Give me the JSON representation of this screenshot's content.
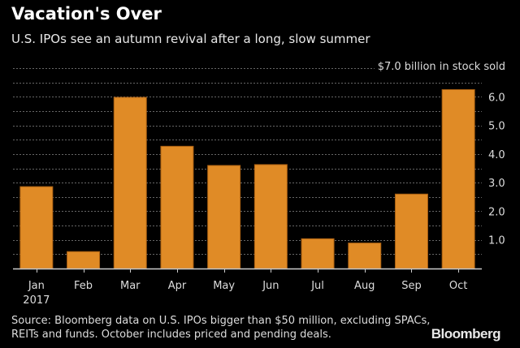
{
  "colors": {
    "bar": "#E08B26",
    "bar_edge": "#A85F12",
    "grid": "#666666",
    "axis": "#cccccc",
    "text": "#dddddd",
    "background": "#000000"
  },
  "chart_data": {
    "type": "bar",
    "title": "Vacation's Over",
    "subtitle": "U.S. IPOs see an autumn revival after a long, slow summer",
    "unit_label": "$7.0 billion in stock sold",
    "categories": [
      "Jan",
      "Feb",
      "Mar",
      "Apr",
      "May",
      "Jun",
      "Jul",
      "Aug",
      "Sep",
      "Oct"
    ],
    "category_sublabels": [
      "2017",
      "",
      "",
      "",
      "",
      "",
      "",
      "",
      "",
      ""
    ],
    "values": [
      2.86,
      0.59,
      5.98,
      4.27,
      3.6,
      3.63,
      1.04,
      0.89,
      2.6,
      6.25
    ],
    "xlabel": "",
    "ylabel": "",
    "ylim": [
      0,
      7.0
    ],
    "yticks": [
      1.0,
      2.0,
      3.0,
      4.0,
      5.0,
      6.0,
      7.0
    ],
    "ytick_labels": [
      "1.0",
      "2.0",
      "3.0",
      "4.0",
      "5.0",
      "6.0",
      "7.0"
    ],
    "minor_grid_step": 0.5,
    "grid": true,
    "y_axis_position": "right"
  },
  "source_note": "Source: Bloomberg data on U.S. IPOs bigger than $50 million, excluding SPACs, REITs and funds. October includes priced and pending deals.",
  "brand": "Bloomberg"
}
